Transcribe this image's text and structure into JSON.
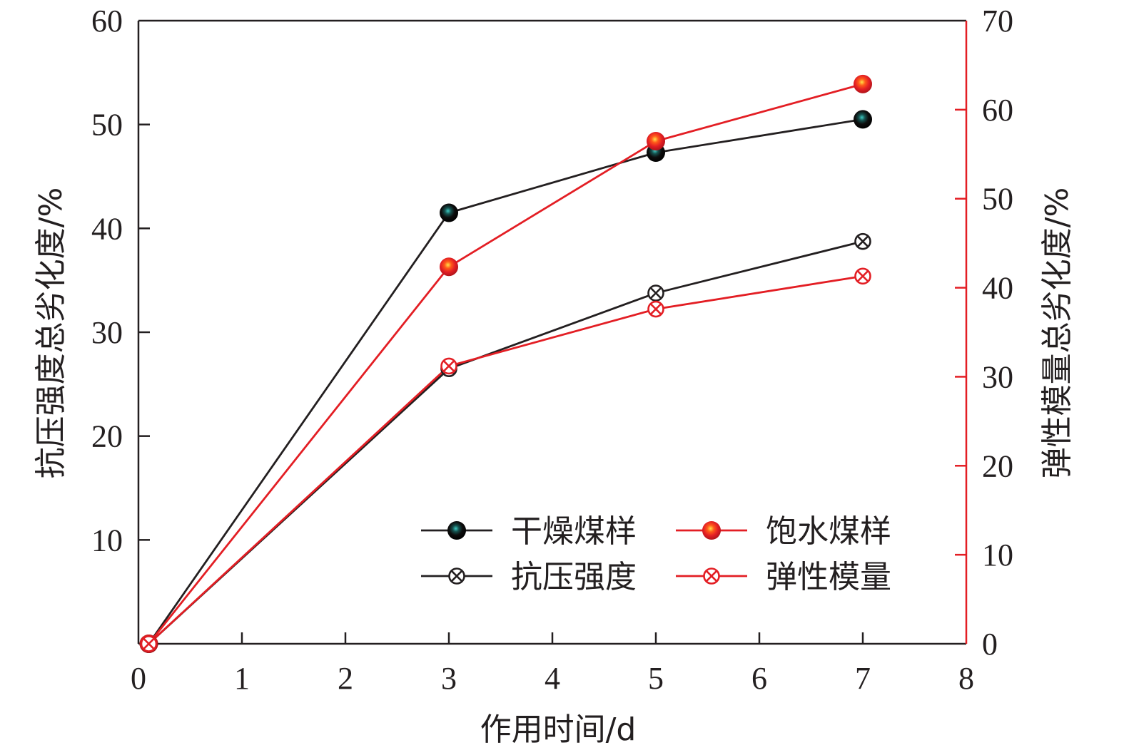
{
  "chart_data": {
    "type": "line",
    "xlabel": "作用时间/d",
    "ylabel_left": "抗压强度总劣化度/%",
    "ylabel_right": "弹性模量总劣化度/%",
    "xlim": [
      0,
      8
    ],
    "ylim_left": [
      0,
      60
    ],
    "ylim_right": [
      0,
      70
    ],
    "x_ticks": [
      "0",
      "1",
      "2",
      "3",
      "4",
      "5",
      "6",
      "7",
      "8"
    ],
    "y_left_ticks": [
      "10",
      "20",
      "30",
      "40",
      "50",
      "60"
    ],
    "y_right_ticks": [
      "0",
      "10",
      "20",
      "30",
      "40",
      "50",
      "60",
      "70"
    ],
    "grid": false,
    "legend_position": "lower-right",
    "colors": {
      "black": "#231f20",
      "red": "#e31e24",
      "teal": "#2aa9a4"
    },
    "series": [
      {
        "label": "干燥煤样 抗压强度",
        "axis": "left",
        "color": "black",
        "marker": "ball",
        "x": [
          0.1,
          3,
          5,
          7
        ],
        "y": [
          0,
          41.5,
          47.3,
          50.5
        ]
      },
      {
        "label": "饱水煤样 抗压强度",
        "axis": "left",
        "color": "red",
        "marker": "ball",
        "x": [
          0.1,
          3,
          5,
          7
        ],
        "y": [
          0,
          36.3,
          48.4,
          53.9
        ]
      },
      {
        "label": "干燥煤样 弹性模量",
        "axis": "right",
        "color": "black",
        "marker": "crossed-circle",
        "x": [
          0.1,
          3,
          5,
          7
        ],
        "y": [
          0,
          30.9,
          39.4,
          45.2
        ]
      },
      {
        "label": "饱水煤样 弹性模量",
        "axis": "right",
        "color": "red",
        "marker": "crossed-circle",
        "x": [
          0.1,
          3,
          5,
          7
        ],
        "y": [
          0,
          31.2,
          37.6,
          41.3
        ]
      }
    ],
    "legend": {
      "entries": [
        {
          "text": "干燥煤样",
          "color": "black",
          "marker": "ball"
        },
        {
          "text": "饱水煤样",
          "color": "red",
          "marker": "ball"
        },
        {
          "text": "抗压强度",
          "color": "black",
          "marker": "crossed-circle"
        },
        {
          "text": "弹性模量",
          "color": "red",
          "marker": "crossed-circle"
        }
      ]
    }
  }
}
